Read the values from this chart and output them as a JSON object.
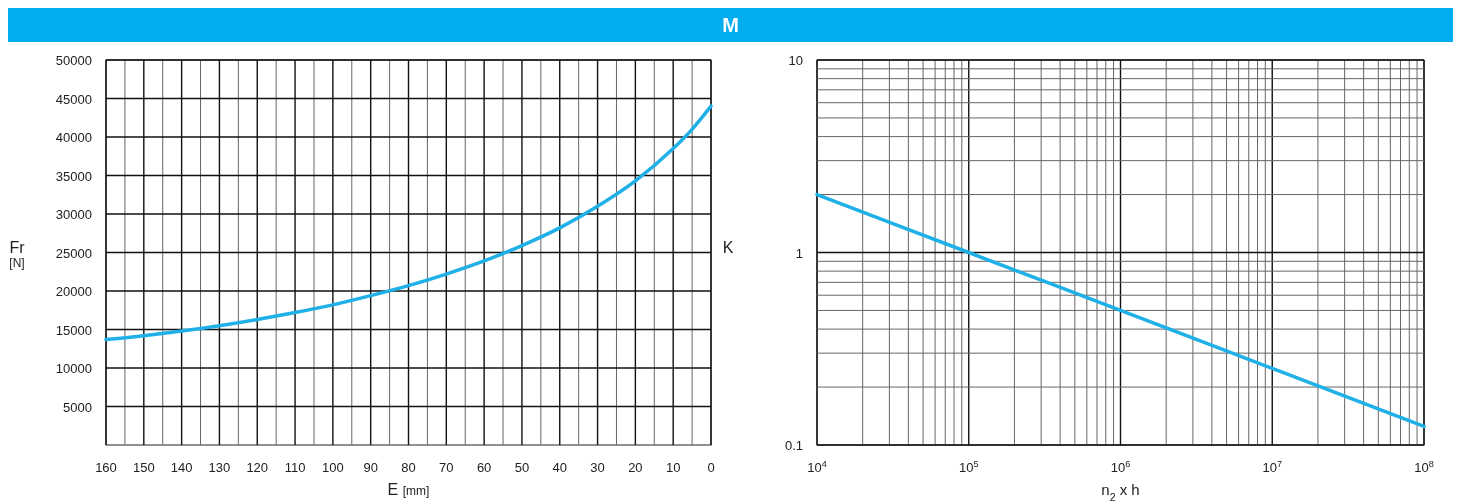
{
  "chart_data": [
    {
      "type": "line",
      "title": "M",
      "xlabel": "E [mm]",
      "ylabel": "Fr [N]",
      "xlim": [
        160,
        0
      ],
      "ylim": [
        0,
        50000
      ],
      "xticks": [
        160,
        {
          "value": 155,
          "label": null
        },
        150,
        {
          "value": 145,
          "label": null
        },
        140,
        {
          "value": 135,
          "label": null
        },
        130,
        {
          "value": 125,
          "label": null
        },
        120,
        {
          "value": 115,
          "label": null
        },
        110,
        {
          "value": 105,
          "label": null
        },
        100,
        {
          "value": 95,
          "label": null
        },
        90,
        {
          "value": 85,
          "label": null
        },
        80,
        {
          "value": 75,
          "label": null
        },
        70,
        {
          "value": 65,
          "label": null
        },
        60,
        {
          "value": 55,
          "label": null
        },
        50,
        {
          "value": 45,
          "label": null
        },
        40,
        {
          "value": 35,
          "label": null
        },
        30,
        {
          "value": 25,
          "label": null
        },
        20,
        {
          "value": 15,
          "label": null
        },
        10,
        {
          "value": 5,
          "label": null
        },
        0
      ],
      "yticks": [
        5000,
        10000,
        15000,
        20000,
        25000,
        30000,
        35000,
        40000,
        45000,
        50000
      ],
      "grid": true,
      "line_style": "solid",
      "x": [
        160,
        150,
        140,
        130,
        120,
        110,
        100,
        90,
        80,
        70,
        60,
        50,
        40,
        30,
        20,
        10,
        5,
        0
      ],
      "series": [
        {
          "color": "#1fb0e8",
          "values": [
            13700,
            14200,
            14800,
            15500,
            16300,
            17200,
            18200,
            19400,
            20700,
            22200,
            23900,
            25900,
            28200,
            31000,
            34300,
            38500,
            41000,
            44000
          ]
        }
      ]
    },
    {
      "type": "line",
      "xlabel": "n$_{2}$ x h",
      "ylabel": "K",
      "log": "xy",
      "xlim": [
        10000,
        100000000
      ],
      "ylim": [
        0.1,
        10
      ],
      "xticks": [
        {
          "value": 10000,
          "label": "10$^{4}$"
        },
        {
          "value": 20000,
          "label": null
        },
        {
          "value": 30000,
          "label": null
        },
        {
          "value": 40000,
          "label": null
        },
        {
          "value": 50000,
          "label": null
        },
        {
          "value": 60000,
          "label": null
        },
        {
          "value": 70000,
          "label": null
        },
        {
          "value": 80000,
          "label": null
        },
        {
          "value": 90000,
          "label": null
        },
        {
          "value": 100000,
          "label": "10$^{5}$"
        },
        {
          "value": 200000,
          "label": null
        },
        {
          "value": 300000,
          "label": null
        },
        {
          "value": 400000,
          "label": null
        },
        {
          "value": 500000,
          "label": null
        },
        {
          "value": 600000,
          "label": null
        },
        {
          "value": 700000,
          "label": null
        },
        {
          "value": 800000,
          "label": null
        },
        {
          "value": 900000,
          "label": null
        },
        {
          "value": 1000000,
          "label": "10$^{6}$"
        },
        {
          "value": 2000000,
          "label": null
        },
        {
          "value": 3000000,
          "label": null
        },
        {
          "value": 4000000,
          "label": null
        },
        {
          "value": 5000000,
          "label": null
        },
        {
          "value": 6000000,
          "label": null
        },
        {
          "value": 7000000,
          "label": null
        },
        {
          "value": 8000000,
          "label": null
        },
        {
          "value": 9000000,
          "label": null
        },
        {
          "value": 10000000,
          "label": "10$^{7}$"
        },
        {
          "value": 20000000,
          "label": null
        },
        {
          "value": 30000000,
          "label": null
        },
        {
          "value": 40000000,
          "label": null
        },
        {
          "value": 50000000,
          "label": null
        },
        {
          "value": 60000000,
          "label": null
        },
        {
          "value": 70000000,
          "label": null
        },
        {
          "value": 80000000,
          "label": null
        },
        {
          "value": 90000000,
          "label": null
        },
        {
          "value": 100000000,
          "label": "10$^{8}$"
        }
      ],
      "yticks": [
        0.1,
        {
          "value": 0.2,
          "label": null
        },
        {
          "value": 0.3,
          "label": null
        },
        {
          "value": 0.4,
          "label": null
        },
        {
          "value": 0.5,
          "label": null
        },
        {
          "value": 0.6,
          "label": null
        },
        {
          "value": 0.7,
          "label": null
        },
        {
          "value": 0.8,
          "label": null
        },
        {
          "value": 0.9,
          "label": null
        },
        1,
        {
          "value": 2,
          "label": null
        },
        {
          "value": 3,
          "label": null
        },
        {
          "value": 4,
          "label": null
        },
        {
          "value": 5,
          "label": null
        },
        {
          "value": 6,
          "label": null
        },
        {
          "value": 7,
          "label": null
        },
        {
          "value": 8,
          "label": null
        },
        {
          "value": 9,
          "label": null
        },
        10
      ],
      "grid": true,
      "line_style": "solid",
      "x": [
        10000,
        100000,
        1000000,
        10000000,
        100000000
      ],
      "series": [
        {
          "color": "#1fb0e8",
          "values": [
            2,
            1,
            0.5,
            0.25,
            0.125
          ]
        }
      ]
    }
  ]
}
